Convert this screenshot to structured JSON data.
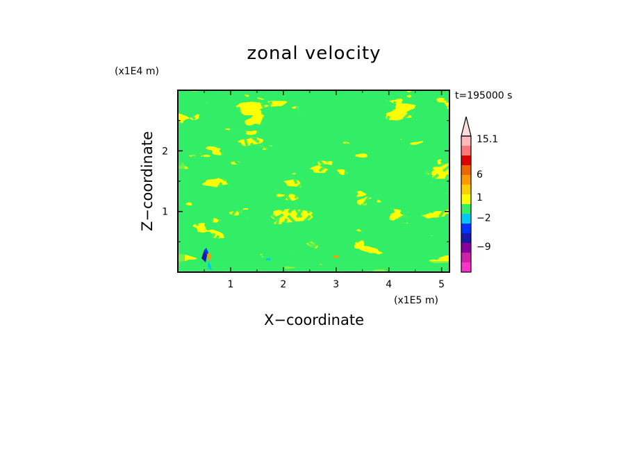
{
  "chart_data": {
    "type": "heatmap",
    "title": "zonal velocity",
    "xlabel": "X−coordinate",
    "ylabel": "Z−coordinate",
    "x_multiplier": "(x1E5 m)",
    "y_multiplier": "(x1E4 m)",
    "time_label": "t=195000 s",
    "xlim": [
      0,
      5.15
    ],
    "ylim": [
      0,
      3.0
    ],
    "x_ticks": [
      1,
      2,
      3,
      4,
      5
    ],
    "y_ticks": [
      1,
      2
    ],
    "x_tick_labels": [
      "1",
      "2",
      "3",
      "4",
      "5"
    ],
    "y_tick_labels": [
      "1",
      "2"
    ],
    "colorbar": {
      "labels": [
        "15.1",
        "6",
        "1",
        "−2",
        "−9"
      ],
      "colors": [
        "#ff33cc",
        "#cc22aa",
        "#880099",
        "#1a1aaa",
        "#0033ff",
        "#00c8ff",
        "#33ee66",
        "#ffff00",
        "#ffd000",
        "#ff9900",
        "#ee6600",
        "#dd0000",
        "#ff7777",
        "#ffbbbb"
      ]
    },
    "dominant_values": {
      "green_band": "−2 to 1",
      "yellow_band": "1 to 6"
    },
    "grid": false
  }
}
